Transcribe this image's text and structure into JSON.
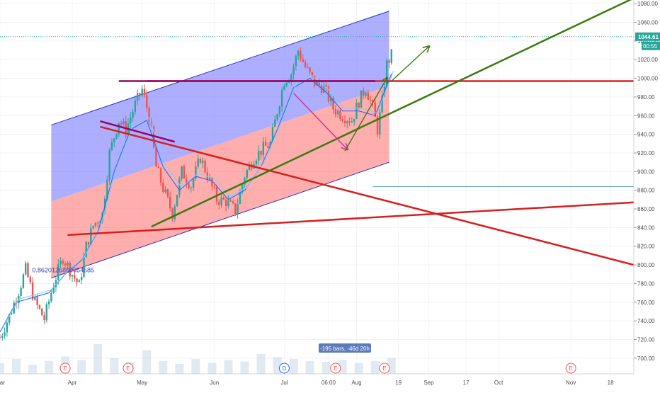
{
  "chart_data": {
    "type": "candlestick",
    "title": "",
    "xlabel": "",
    "ylabel": "",
    "y_axis": {
      "position": "right",
      "ylim": [
        690,
        1090
      ],
      "ticks": [
        700,
        720,
        740,
        760,
        780,
        800,
        820,
        840,
        860,
        880,
        900,
        920,
        940,
        960,
        980,
        1000,
        1020,
        1040,
        1060,
        1080
      ],
      "tick_labels": [
        "700.00",
        "720.00",
        "740.00",
        "760.00",
        "780.00",
        "800.00",
        "820.00",
        "840.00",
        "860.00",
        "880.00",
        "900.00",
        "920.00",
        "940.00",
        "960.00",
        "980.00",
        "1000.00",
        "1020.00",
        "1040.00",
        "1060.00",
        "1080.00"
      ]
    },
    "x_axis": {
      "xlim": [
        "2020-03-01",
        "2020-11-28"
      ],
      "ticks": [
        {
          "label": "Mar",
          "date": "2020-03-01"
        },
        {
          "label": "Apr",
          "date": "2020-04-01"
        },
        {
          "label": "May",
          "date": "2020-05-01"
        },
        {
          "label": "Jun",
          "date": "2020-06-01"
        },
        {
          "label": "Jul",
          "date": "2020-07-01"
        },
        {
          "label": "06:00",
          "date": "2020-07-20"
        },
        {
          "label": "Aug",
          "date": "2020-08-01"
        },
        {
          "label": "19",
          "date": "2020-08-19"
        },
        {
          "label": "Sep",
          "date": "2020-09-01"
        },
        {
          "label": "17",
          "date": "2020-09-17"
        },
        {
          "label": "Oct",
          "date": "2020-10-01"
        },
        {
          "label": "Nov",
          "date": "2020-11-01"
        },
        {
          "label": "18",
          "date": "2020-11-18"
        }
      ]
    },
    "last_price": {
      "label": "1044.61",
      "value": 1044.61,
      "countdown": "00:55",
      "color": "#26a69a"
    },
    "price_path": [
      [
        "2020-03-01",
        722
      ],
      [
        "2020-03-05",
        745
      ],
      [
        "2020-03-09",
        772
      ],
      [
        "2020-03-12",
        795
      ],
      [
        "2020-03-16",
        760
      ],
      [
        "2020-03-20",
        742
      ],
      [
        "2020-03-24",
        780
      ],
      [
        "2020-03-28",
        808
      ],
      [
        "2020-04-01",
        790
      ],
      [
        "2020-04-04",
        778
      ],
      [
        "2020-04-07",
        820
      ],
      [
        "2020-04-10",
        842
      ],
      [
        "2020-04-14",
        855
      ],
      [
        "2020-04-17",
        920
      ],
      [
        "2020-04-21",
        955
      ],
      [
        "2020-04-24",
        945
      ],
      [
        "2020-04-28",
        972
      ],
      [
        "2020-05-01",
        988
      ],
      [
        "2020-05-04",
        960
      ],
      [
        "2020-05-07",
        905
      ],
      [
        "2020-05-10",
        882
      ],
      [
        "2020-05-14",
        855
      ],
      [
        "2020-05-18",
        900
      ],
      [
        "2020-05-22",
        885
      ],
      [
        "2020-05-26",
        915
      ],
      [
        "2020-05-29",
        896
      ],
      [
        "2020-06-02",
        870
      ],
      [
        "2020-06-06",
        868
      ],
      [
        "2020-06-10",
        858
      ],
      [
        "2020-06-14",
        896
      ],
      [
        "2020-06-18",
        915
      ],
      [
        "2020-06-22",
        925
      ],
      [
        "2020-06-25",
        930
      ],
      [
        "2020-06-28",
        965
      ],
      [
        "2020-07-01",
        998
      ],
      [
        "2020-07-04",
        1005
      ],
      [
        "2020-07-07",
        1030
      ],
      [
        "2020-07-10",
        1012
      ],
      [
        "2020-07-14",
        995
      ],
      [
        "2020-07-18",
        990
      ],
      [
        "2020-07-22",
        968
      ],
      [
        "2020-07-26",
        960
      ],
      [
        "2020-07-30",
        955
      ],
      [
        "2020-08-02",
        975
      ],
      [
        "2020-08-05",
        990
      ],
      [
        "2020-08-08",
        968
      ],
      [
        "2020-08-10",
        945
      ],
      [
        "2020-08-12",
        975
      ],
      [
        "2020-08-14",
        1015
      ],
      [
        "2020-08-16",
        1025
      ]
    ],
    "ma_path": [
      [
        "2020-03-01",
        728
      ],
      [
        "2020-03-08",
        760
      ],
      [
        "2020-03-15",
        765
      ],
      [
        "2020-03-22",
        770
      ],
      [
        "2020-03-29",
        790
      ],
      [
        "2020-04-05",
        805
      ],
      [
        "2020-04-12",
        835
      ],
      [
        "2020-04-19",
        900
      ],
      [
        "2020-04-26",
        945
      ],
      [
        "2020-05-03",
        955
      ],
      [
        "2020-05-10",
        905
      ],
      [
        "2020-05-17",
        880
      ],
      [
        "2020-05-24",
        895
      ],
      [
        "2020-05-31",
        890
      ],
      [
        "2020-06-07",
        870
      ],
      [
        "2020-06-14",
        880
      ],
      [
        "2020-06-21",
        905
      ],
      [
        "2020-06-28",
        945
      ],
      [
        "2020-07-05",
        990
      ],
      [
        "2020-07-12",
        1000
      ],
      [
        "2020-07-19",
        985
      ],
      [
        "2020-07-26",
        965
      ],
      [
        "2020-08-02",
        965
      ],
      [
        "2020-08-09",
        960
      ],
      [
        "2020-08-16",
        1005
      ]
    ],
    "channel": {
      "x_start": "2020-03-23",
      "x_end": "2020-08-15",
      "upper": [
        950,
        1072
      ],
      "middle": [
        868,
        992
      ],
      "lower": [
        786,
        910
      ],
      "upper_fill": "#6b6bff",
      "lower_fill": "#ff6b6b",
      "line_color": "#3030c0"
    },
    "trendlines": [
      {
        "color": "#e02020",
        "points": [
          [
            "2020-05-03",
            997
          ],
          [
            "2020-11-28",
            997
          ]
        ]
      },
      {
        "color": "#990066",
        "points": [
          [
            "2020-04-21",
            997
          ],
          [
            "2020-08-09",
            997
          ]
        ]
      },
      {
        "color": "#d62020",
        "points": [
          [
            "2020-03-30",
            832
          ],
          [
            "2020-11-28",
            867
          ]
        ]
      },
      {
        "color": "#d62020",
        "points": [
          [
            "2020-04-13",
            948
          ],
          [
            "2020-11-28",
            800
          ]
        ]
      },
      {
        "color": "#990066",
        "points": [
          [
            "2020-04-13",
            954
          ],
          [
            "2020-05-15",
            932
          ]
        ]
      },
      {
        "color": "#3a7a10",
        "points": [
          [
            "2020-05-05",
            841
          ],
          [
            "2020-11-28",
            1086
          ]
        ]
      }
    ],
    "horizontal_line": {
      "value": 884,
      "color": "#5aa5a5",
      "x_start": "2020-08-08"
    },
    "arrows": [
      {
        "color": "#cc3399",
        "from": [
          "2020-07-05",
          984
        ],
        "to": [
          "2020-07-28",
          924
        ]
      },
      {
        "color": "#3a7a10",
        "from": [
          "2020-07-27",
          922
        ],
        "to": [
          "2020-08-14",
          1000
        ]
      },
      {
        "color": "#3a7a10",
        "from": [
          "2020-08-16",
          997
        ],
        "to": [
          "2020-09-01",
          1034
        ]
      }
    ],
    "annotation_text": "0.8620126800654585",
    "range_label": "-195 bars, -46d 20h",
    "event_markers": [
      {
        "label": "E",
        "date": "2020-03-29"
      },
      {
        "label": "E",
        "date": "2020-04-25"
      },
      {
        "label": "D",
        "date": "2020-07-01"
      },
      {
        "label": "E",
        "date": "2020-07-23"
      },
      {
        "label": "E",
        "date": "2020-08-13"
      },
      {
        "label": "E",
        "date": "2020-11-01"
      }
    ],
    "volume_max": 100,
    "volume_series": [
      [
        "2020-03-01",
        22
      ],
      [
        "2020-03-08",
        30
      ],
      [
        "2020-03-15",
        18
      ],
      [
        "2020-03-22",
        26
      ],
      [
        "2020-03-29",
        35
      ],
      [
        "2020-04-05",
        28
      ],
      [
        "2020-04-12",
        60
      ],
      [
        "2020-04-19",
        32
      ],
      [
        "2020-04-26",
        24
      ],
      [
        "2020-05-03",
        48
      ],
      [
        "2020-05-10",
        26
      ],
      [
        "2020-05-17",
        20
      ],
      [
        "2020-05-24",
        30
      ],
      [
        "2020-05-31",
        22
      ],
      [
        "2020-06-07",
        28
      ],
      [
        "2020-06-14",
        25
      ],
      [
        "2020-06-21",
        40
      ],
      [
        "2020-06-28",
        34
      ],
      [
        "2020-07-05",
        30
      ],
      [
        "2020-07-12",
        26
      ],
      [
        "2020-07-19",
        24
      ],
      [
        "2020-07-26",
        28
      ],
      [
        "2020-08-02",
        22
      ],
      [
        "2020-08-09",
        26
      ],
      [
        "2020-08-16",
        32
      ]
    ]
  }
}
